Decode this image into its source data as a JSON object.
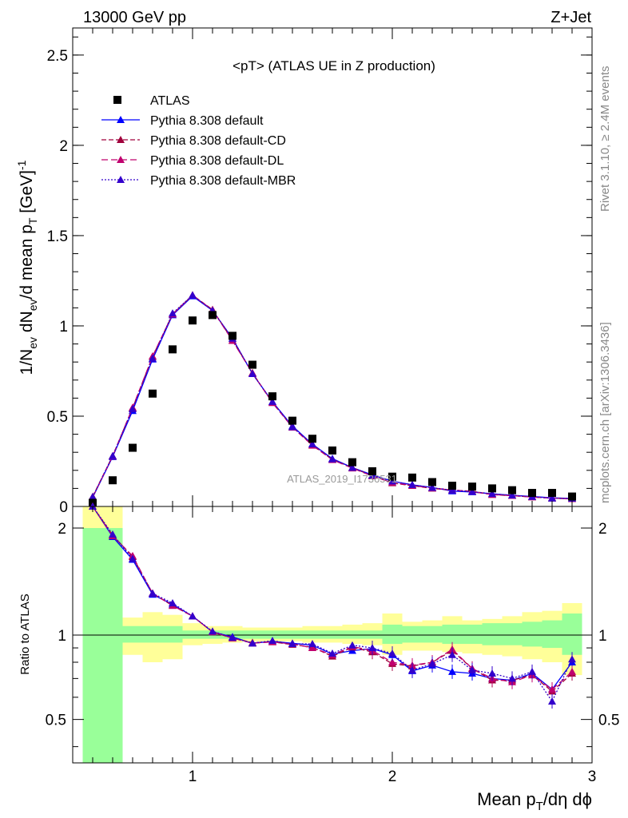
{
  "header": {
    "left": "13000 GeV pp",
    "right": "Z+Jet"
  },
  "side_labels": {
    "top": "Rivet 3.1.10, ≥ 2.4M events",
    "bottom": "mcplots.cern.ch [arXiv:1306.3436]"
  },
  "watermark": "ATLAS_2019_I1736531",
  "chart_data": {
    "type": "scatter",
    "title": "<pT> (ATLAS UE in Z production)",
    "xlabel": "Mean p_T/dη dφ",
    "ylabel": "1/N_ev dN_ev/d mean p_T [GeV]^-1",
    "ratio_ylabel": "Ratio to ATLAS",
    "xlim": [
      0.4,
      3.0
    ],
    "ylim": [
      0,
      2.65
    ],
    "ratio_ylim": [
      0.35,
      2.3
    ],
    "x_ticks": [
      1,
      2,
      3
    ],
    "y_ticks": [
      0,
      0.5,
      1,
      1.5,
      2,
      2.5
    ],
    "y_tick_labels": [
      "0",
      "0.5",
      "1",
      "1.5",
      "2",
      "2.5"
    ],
    "ratio_ticks": [
      0.5,
      1,
      2
    ],
    "legend_placement": "top-left",
    "x": [
      0.5,
      0.6,
      0.7,
      0.8,
      0.9,
      1.0,
      1.1,
      1.2,
      1.3,
      1.4,
      1.5,
      1.6,
      1.7,
      1.8,
      1.9,
      2.0,
      2.1,
      2.2,
      2.3,
      2.4,
      2.5,
      2.6,
      2.7,
      2.8,
      2.9
    ],
    "data": {
      "name": "ATLAS",
      "values": [
        0.02,
        0.145,
        0.325,
        0.625,
        0.87,
        1.03,
        1.06,
        0.945,
        0.785,
        0.61,
        0.475,
        0.375,
        0.31,
        0.245,
        0.195,
        0.165,
        0.16,
        0.135,
        0.115,
        0.11,
        0.1,
        0.09,
        0.075,
        0.075,
        0.055
      ],
      "color": "#000000"
    },
    "series": [
      {
        "name": "Pythia 8.308 default",
        "color": "#0000ff",
        "dash": "solid",
        "values": [
          0.05,
          0.275,
          0.53,
          0.815,
          1.06,
          1.165,
          1.085,
          0.93,
          0.735,
          0.58,
          0.445,
          0.345,
          0.265,
          0.215,
          0.175,
          0.14,
          0.12,
          0.105,
          0.085,
          0.08,
          0.07,
          0.062,
          0.055,
          0.048,
          0.044
        ],
        "ratio": [
          2.4,
          1.89,
          1.63,
          1.3,
          1.22,
          1.13,
          1.02,
          0.985,
          0.935,
          0.95,
          0.935,
          0.92,
          0.855,
          0.88,
          0.895,
          0.85,
          0.745,
          0.78,
          0.74,
          0.73,
          0.7,
          0.69,
          0.73,
          0.64,
          0.8
        ]
      },
      {
        "name": "Pythia 8.308 default-CD",
        "color": "#a0003c",
        "dash": "6,3",
        "values": [
          0.055,
          0.28,
          0.545,
          0.83,
          1.065,
          1.17,
          1.09,
          0.92,
          0.74,
          0.575,
          0.44,
          0.34,
          0.26,
          0.215,
          0.17,
          0.13,
          0.115,
          0.1,
          0.09,
          0.085,
          0.065,
          0.06,
          0.052,
          0.046,
          0.042
        ],
        "ratio": [
          2.45,
          1.91,
          1.66,
          1.31,
          1.21,
          1.13,
          1.02,
          0.975,
          0.94,
          0.945,
          0.925,
          0.905,
          0.84,
          0.905,
          0.87,
          0.79,
          0.775,
          0.8,
          0.88,
          0.76,
          0.69,
          0.69,
          0.72,
          0.63,
          0.73
        ]
      },
      {
        "name": "Pythia 8.308 default-DL",
        "color": "#c0006e",
        "dash": "8,4",
        "values": [
          0.052,
          0.278,
          0.548,
          0.832,
          1.065,
          1.17,
          1.088,
          0.918,
          0.738,
          0.574,
          0.438,
          0.338,
          0.258,
          0.212,
          0.168,
          0.132,
          0.116,
          0.102,
          0.092,
          0.082,
          0.066,
          0.06,
          0.052,
          0.046,
          0.042
        ],
        "ratio": [
          2.42,
          1.9,
          1.67,
          1.31,
          1.21,
          1.13,
          1.02,
          0.975,
          0.935,
          0.945,
          0.93,
          0.9,
          0.85,
          0.91,
          0.88,
          0.8,
          0.78,
          0.8,
          0.89,
          0.76,
          0.7,
          0.68,
          0.72,
          0.64,
          0.74
        ]
      },
      {
        "name": "Pythia 8.308 default-MBR",
        "color": "#3300cc",
        "dash": "2,2",
        "values": [
          0.053,
          0.28,
          0.54,
          0.82,
          1.07,
          1.17,
          1.085,
          0.93,
          0.735,
          0.58,
          0.44,
          0.345,
          0.262,
          0.215,
          0.172,
          0.14,
          0.12,
          0.104,
          0.09,
          0.082,
          0.07,
          0.062,
          0.054,
          0.045,
          0.044
        ],
        "ratio": [
          2.44,
          1.92,
          1.64,
          1.31,
          1.23,
          1.13,
          1.025,
          0.98,
          0.935,
          0.955,
          0.93,
          0.93,
          0.86,
          0.92,
          0.9,
          0.86,
          0.75,
          0.79,
          0.85,
          0.75,
          0.73,
          0.7,
          0.74,
          0.58,
          0.82
        ]
      }
    ],
    "bands": {
      "x_edges": [
        0.45,
        0.55,
        0.65,
        0.75,
        0.85,
        0.95,
        1.05,
        1.15,
        1.25,
        1.35,
        1.45,
        1.55,
        1.65,
        1.75,
        1.85,
        1.95,
        2.05,
        2.15,
        2.25,
        2.35,
        2.45,
        2.55,
        2.65,
        2.75,
        2.85,
        2.95
      ],
      "yellow_lo": [
        0.35,
        0.35,
        0.85,
        0.8,
        0.82,
        0.92,
        0.93,
        0.94,
        0.95,
        0.95,
        0.95,
        0.94,
        0.94,
        0.93,
        0.92,
        0.85,
        0.88,
        0.88,
        0.87,
        0.86,
        0.85,
        0.84,
        0.82,
        0.8,
        0.72
      ],
      "yellow_hi": [
        2.3,
        2.3,
        1.12,
        1.16,
        1.14,
        1.08,
        1.06,
        1.06,
        1.05,
        1.05,
        1.05,
        1.06,
        1.06,
        1.07,
        1.08,
        1.15,
        1.09,
        1.1,
        1.13,
        1.1,
        1.11,
        1.13,
        1.16,
        1.17,
        1.23
      ],
      "green_lo": [
        0.35,
        0.35,
        0.94,
        0.94,
        0.94,
        0.97,
        0.97,
        0.97,
        0.97,
        0.97,
        0.97,
        0.97,
        0.97,
        0.97,
        0.97,
        0.93,
        0.94,
        0.94,
        0.93,
        0.93,
        0.92,
        0.92,
        0.91,
        0.9,
        0.85
      ],
      "green_hi": [
        2.0,
        2.0,
        1.06,
        1.06,
        1.06,
        1.03,
        1.03,
        1.03,
        1.03,
        1.03,
        1.03,
        1.03,
        1.03,
        1.03,
        1.03,
        1.07,
        1.06,
        1.06,
        1.07,
        1.07,
        1.08,
        1.08,
        1.09,
        1.1,
        1.15
      ]
    }
  }
}
